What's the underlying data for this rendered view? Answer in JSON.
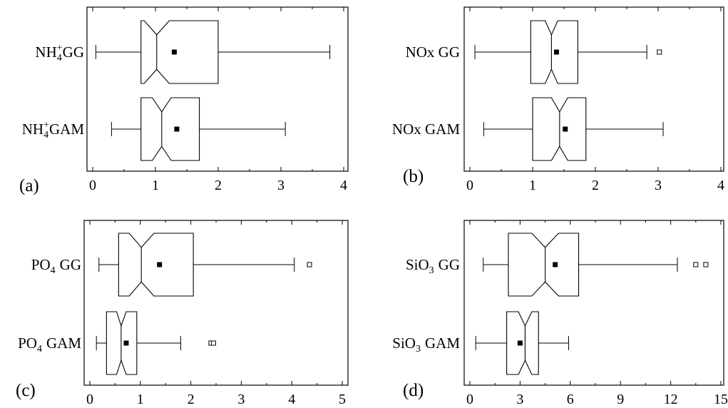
{
  "chart_data": [
    {
      "type": "box",
      "panel_label": "(a)",
      "xlim": [
        0,
        4
      ],
      "xticks": [
        "0",
        "1",
        "2",
        "3",
        "4"
      ],
      "orientation": "horizontal",
      "notched": true,
      "series": [
        {
          "label": [
            "NH",
            "4",
            "+",
            "GG"
          ],
          "min": 0.05,
          "q1": 0.77,
          "median": 1.02,
          "q3": 2.0,
          "max": 3.78,
          "notch_low": 0.82,
          "notch_high": 1.22,
          "mean": 1.3,
          "outliers": []
        },
        {
          "label": [
            "NH",
            "4",
            "+",
            "GAM"
          ],
          "min": 0.3,
          "q1": 0.77,
          "median": 1.1,
          "q3": 1.7,
          "max": 3.07,
          "notch_low": 0.95,
          "notch_high": 1.25,
          "mean": 1.34,
          "outliers": []
        }
      ]
    },
    {
      "type": "box",
      "panel_label": "(b)",
      "xlim": [
        0,
        4
      ],
      "xticks": [
        "0",
        "1",
        "2",
        "3",
        "4"
      ],
      "orientation": "horizontal",
      "notched": true,
      "series": [
        {
          "label": [
            "NOx GG"
          ],
          "min": 0.08,
          "q1": 0.97,
          "median": 1.3,
          "q3": 1.72,
          "max": 2.82,
          "notch_low": 1.2,
          "notch_high": 1.4,
          "mean": 1.38,
          "outliers": [
            3.02
          ]
        },
        {
          "label": [
            "NOx GAM"
          ],
          "min": 0.22,
          "q1": 1.0,
          "median": 1.43,
          "q3": 1.85,
          "max": 3.08,
          "notch_low": 1.3,
          "notch_high": 1.56,
          "mean": 1.52,
          "outliers": []
        }
      ]
    },
    {
      "type": "box",
      "panel_label": "(c)",
      "xlim": [
        0,
        5
      ],
      "xticks": [
        "0",
        "1",
        "2",
        "3",
        "4",
        "5"
      ],
      "orientation": "horizontal",
      "notched": true,
      "series": [
        {
          "label": [
            "PO",
            "4",
            "GG"
          ],
          "min": 0.18,
          "q1": 0.57,
          "median": 1.02,
          "q3": 2.05,
          "max": 4.05,
          "notch_low": 0.78,
          "notch_high": 1.27,
          "mean": 1.38,
          "outliers": [
            4.35
          ]
        },
        {
          "label": [
            "PO",
            "4",
            "GAM"
          ],
          "min": 0.13,
          "q1": 0.33,
          "median": 0.62,
          "q3": 0.93,
          "max": 1.8,
          "notch_low": 0.53,
          "notch_high": 0.72,
          "mean": 0.72,
          "outliers": [
            2.4,
            2.45
          ]
        }
      ]
    },
    {
      "type": "box",
      "panel_label": "(d)",
      "xlim": [
        0,
        15
      ],
      "xticks": [
        "0",
        "3",
        "6",
        "9",
        "12",
        "15"
      ],
      "orientation": "horizontal",
      "notched": true,
      "series": [
        {
          "label": [
            "SiO",
            "3",
            "GG"
          ],
          "min": 0.8,
          "q1": 2.3,
          "median": 4.5,
          "q3": 6.5,
          "max": 12.4,
          "notch_low": 3.7,
          "notch_high": 5.3,
          "mean": 5.1,
          "outliers": [
            13.5,
            14.1
          ]
        },
        {
          "label": [
            "SiO",
            "3",
            "GAM"
          ],
          "min": 0.35,
          "q1": 2.2,
          "median": 3.3,
          "q3": 4.1,
          "max": 5.9,
          "notch_low": 2.9,
          "notch_high": 3.7,
          "mean": 3.0,
          "outliers": []
        }
      ]
    }
  ]
}
